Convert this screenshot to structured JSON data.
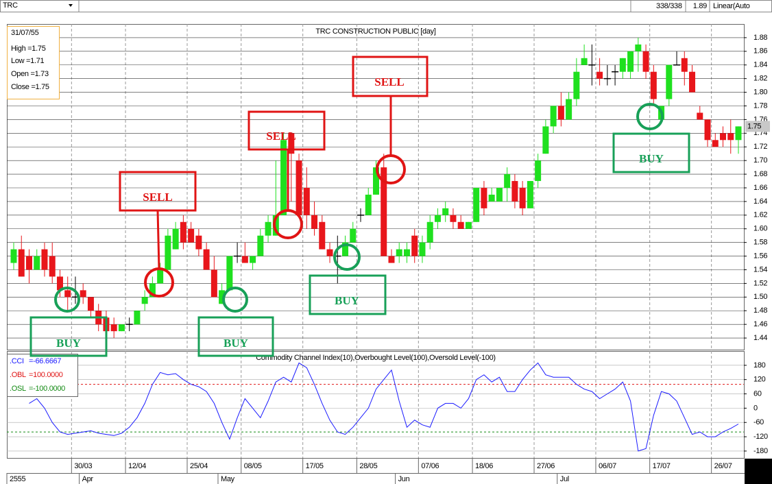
{
  "toolbar": {
    "symbol": "TRC",
    "count": "338/338",
    "price": "1.89",
    "scale": "Linear(Auto"
  },
  "info_box": [
    "31/07/55",
    "High =1.75",
    "Low  =1.71",
    "Open =1.73",
    "Close =1.75"
  ],
  "chart_data": [
    {
      "type": "candlestick",
      "title": "TRC CONSTRUCTION PUBLIC [day]",
      "categories": [
        null,
        null,
        null,
        null,
        null,
        null,
        null,
        null,
        "30/03",
        null,
        null,
        null,
        null,
        null,
        null,
        "12/04",
        null,
        null,
        null,
        null,
        null,
        null,
        null,
        "25/04",
        null,
        null,
        null,
        null,
        null,
        null,
        "08/05",
        null,
        null,
        null,
        null,
        null,
        null,
        null,
        "17/05",
        null,
        null,
        null,
        null,
        null,
        null,
        "28/05",
        null,
        null,
        null,
        null,
        null,
        null,
        null,
        "07/06",
        null,
        null,
        null,
        null,
        null,
        null,
        "18/06",
        null,
        null,
        null,
        null,
        null,
        null,
        null,
        "27/06",
        null,
        null,
        null,
        null,
        null,
        null,
        null,
        "06/07",
        null,
        null,
        null,
        null,
        null,
        null,
        "17/07",
        null,
        null,
        null,
        null,
        null,
        null,
        null,
        "26/07",
        null,
        null,
        null
      ],
      "month_categories": [
        "2555",
        null,
        null,
        null,
        null,
        null,
        null,
        null,
        null,
        "Apr",
        null,
        null,
        null,
        null,
        null,
        null,
        null,
        null,
        null,
        null,
        null,
        null,
        null,
        null,
        null,
        null,
        null,
        "May",
        null,
        null,
        null,
        null,
        null,
        null,
        null,
        null,
        null,
        null,
        null,
        null,
        null,
        null,
        null,
        null,
        null,
        null,
        null,
        null,
        null,
        null,
        "Jun",
        null,
        null,
        null,
        null,
        null,
        null,
        null,
        null,
        null,
        null,
        null,
        null,
        null,
        null,
        null,
        null,
        null,
        null,
        null,
        null,
        "Jul",
        null,
        null,
        null,
        null,
        null,
        null,
        null,
        null,
        null,
        null,
        null,
        null,
        null,
        null,
        null,
        null,
        null,
        null,
        null,
        null,
        null,
        null,
        null
      ],
      "open": [
        1.55,
        1.57,
        1.56,
        1.54,
        1.57,
        1.56,
        1.53,
        1.51,
        1.5,
        1.51,
        1.5,
        1.48,
        1.47,
        1.46,
        1.45,
        1.46,
        1.46,
        1.49,
        1.5,
        1.52,
        1.54,
        1.57,
        1.61,
        1.6,
        1.59,
        1.57,
        1.54,
        1.49,
        1.51,
        1.56,
        1.56,
        1.55,
        1.56,
        1.59,
        1.59,
        1.62,
        1.74,
        1.7,
        1.66,
        1.62,
        1.61,
        1.57,
        1.56,
        1.56,
        1.58,
        1.62,
        1.62,
        1.65,
        1.69,
        1.56,
        1.56,
        1.56,
        1.59,
        1.56,
        1.58,
        1.61,
        1.62,
        1.62,
        1.61,
        1.6,
        1.61,
        1.66,
        1.64,
        1.64,
        1.66,
        1.67,
        1.66,
        1.63,
        1.67,
        1.71,
        1.75,
        1.78,
        1.76,
        1.79,
        1.84,
        1.84,
        1.83,
        1.82,
        1.83,
        1.83,
        1.83,
        1.86,
        1.86,
        1.83,
        1.76,
        1.79,
        1.84,
        1.85,
        1.83,
        1.77,
        1.76,
        1.73,
        1.74,
        1.74,
        1.73
      ],
      "high": [
        1.58,
        1.59,
        1.57,
        1.57,
        1.58,
        1.58,
        1.54,
        1.53,
        1.53,
        1.52,
        1.5,
        1.49,
        1.48,
        1.47,
        1.46,
        1.47,
        1.48,
        1.51,
        1.53,
        1.55,
        1.6,
        1.61,
        1.62,
        1.61,
        1.6,
        1.58,
        1.56,
        1.52,
        1.56,
        1.58,
        1.58,
        1.56,
        1.6,
        1.62,
        1.7,
        1.74,
        1.74,
        1.71,
        1.69,
        1.64,
        1.62,
        1.58,
        1.59,
        1.59,
        1.61,
        1.63,
        1.66,
        1.7,
        1.71,
        1.57,
        1.58,
        1.58,
        1.6,
        1.59,
        1.62,
        1.63,
        1.64,
        1.63,
        1.62,
        1.61,
        1.66,
        1.67,
        1.66,
        1.66,
        1.69,
        1.68,
        1.67,
        1.67,
        1.71,
        1.76,
        1.78,
        1.8,
        1.8,
        1.85,
        1.87,
        1.87,
        1.85,
        1.84,
        1.84,
        1.85,
        1.86,
        1.88,
        1.87,
        1.84,
        1.78,
        1.84,
        1.86,
        1.86,
        1.84,
        1.78,
        1.76,
        1.74,
        1.75,
        1.76,
        1.75
      ],
      "low": [
        1.54,
        1.53,
        1.52,
        1.54,
        1.53,
        1.52,
        1.5,
        1.48,
        1.49,
        1.49,
        1.47,
        1.45,
        1.44,
        1.44,
        1.45,
        1.45,
        1.46,
        1.48,
        1.5,
        1.52,
        1.54,
        1.57,
        1.57,
        1.58,
        1.56,
        1.54,
        1.5,
        1.49,
        1.51,
        1.55,
        1.55,
        1.54,
        1.56,
        1.58,
        1.59,
        1.62,
        1.64,
        1.62,
        1.6,
        1.59,
        1.57,
        1.55,
        1.52,
        1.56,
        1.58,
        1.61,
        1.62,
        1.65,
        1.56,
        1.55,
        1.55,
        1.55,
        1.55,
        1.55,
        1.57,
        1.6,
        1.61,
        1.6,
        1.6,
        1.6,
        1.61,
        1.62,
        1.64,
        1.64,
        1.64,
        1.63,
        1.62,
        1.63,
        1.66,
        1.71,
        1.74,
        1.75,
        1.76,
        1.78,
        1.84,
        1.81,
        1.81,
        1.81,
        1.81,
        1.82,
        1.82,
        1.83,
        1.82,
        1.78,
        1.76,
        1.78,
        1.84,
        1.81,
        1.8,
        1.76,
        1.72,
        1.72,
        1.72,
        1.71,
        1.71
      ],
      "close": [
        1.57,
        1.53,
        1.54,
        1.56,
        1.54,
        1.53,
        1.51,
        1.5,
        1.5,
        1.5,
        1.48,
        1.46,
        1.45,
        1.45,
        1.46,
        1.46,
        1.48,
        1.5,
        1.52,
        1.54,
        1.59,
        1.6,
        1.58,
        1.58,
        1.57,
        1.54,
        1.5,
        1.51,
        1.56,
        1.56,
        1.55,
        1.56,
        1.59,
        1.61,
        1.62,
        1.73,
        1.71,
        1.62,
        1.62,
        1.6,
        1.57,
        1.56,
        1.56,
        1.58,
        1.6,
        1.62,
        1.65,
        1.69,
        1.56,
        1.55,
        1.57,
        1.57,
        1.56,
        1.58,
        1.61,
        1.62,
        1.63,
        1.61,
        1.6,
        1.61,
        1.66,
        1.63,
        1.65,
        1.66,
        1.68,
        1.64,
        1.63,
        1.67,
        1.7,
        1.75,
        1.78,
        1.76,
        1.79,
        1.83,
        1.85,
        1.84,
        1.82,
        1.82,
        1.83,
        1.85,
        1.86,
        1.87,
        1.83,
        1.79,
        1.78,
        1.84,
        1.84,
        1.83,
        1.8,
        1.76,
        1.73,
        1.72,
        1.73,
        1.73,
        1.75
      ],
      "up_color": "#1fe01f",
      "down_color": "#e8161b",
      "doji_color": "#000000",
      "ylim": [
        1.423,
        1.9
      ],
      "yticks": [
        1.44,
        1.46,
        1.48,
        {
          "value": 1.5,
          "label": "1.50"
        },
        1.52,
        1.54,
        1.56,
        1.58,
        {
          "value": 1.6,
          "label": "1.60"
        },
        1.62,
        1.64,
        1.66,
        1.68,
        {
          "value": 1.7,
          "label": "1.70"
        },
        1.72,
        1.74,
        1.76,
        1.78,
        {
          "value": 1.8,
          "label": "1.80"
        },
        1.82,
        1.84,
        1.86,
        1.88
      ],
      "grid": true,
      "last_price": 1.75,
      "annotations": [
        {
          "text": "BUY",
          "color": "#18a058"
        },
        {
          "text": "SELL",
          "color": "#e01414"
        },
        {
          "text": "BUY",
          "color": "#18a058"
        },
        {
          "text": "SELL",
          "color": "#e01414"
        },
        {
          "text": "SELL",
          "color": "#e01414"
        },
        {
          "text": "BUY",
          "color": "#18a058"
        },
        {
          "text": "BUY",
          "color": "#18a058"
        }
      ]
    },
    {
      "type": "line",
      "title": "Commodity Channel Index(10),Overbought Level(100),Oversold Level(-100)",
      "values": [
        null,
        null,
        20,
        40,
        0,
        -60,
        -100,
        -110,
        -105,
        -100,
        -95,
        -105,
        -110,
        -115,
        -105,
        -80,
        -40,
        20,
        100,
        150,
        140,
        145,
        120,
        100,
        90,
        70,
        20,
        -60,
        -130,
        -40,
        40,
        0,
        -40,
        30,
        110,
        130,
        110,
        190,
        170,
        100,
        20,
        -50,
        -100,
        -110,
        -80,
        -40,
        0,
        80,
        120,
        160,
        30,
        -80,
        -50,
        -70,
        -80,
        0,
        20,
        20,
        0,
        40,
        120,
        140,
        110,
        130,
        70,
        70,
        120,
        160,
        190,
        140,
        130,
        130,
        130,
        100,
        80,
        70,
        40,
        60,
        80,
        110,
        30,
        -180,
        -170,
        -30,
        70,
        60,
        30,
        -40,
        -110,
        -100,
        -120,
        -120,
        -100,
        -85,
        -66.6667
      ],
      "color": "#1a1aff",
      "ylim": [
        -209,
        240
      ],
      "yticks": [
        -180,
        -120,
        -60,
        0,
        60,
        120,
        180
      ],
      "grid": true,
      "legend": [
        {
          "name": ".CCI",
          "label": "=-66.6667",
          "color": "#1a1aff"
        }
      ],
      "ref_lines": [
        {
          "name": ".OBL",
          "value": 100,
          "label": "=100.0000",
          "color": "#e01414"
        },
        {
          "name": ".OSL",
          "value": -100,
          "label": "=-100.0000",
          "color": "#138a13"
        }
      ]
    }
  ]
}
